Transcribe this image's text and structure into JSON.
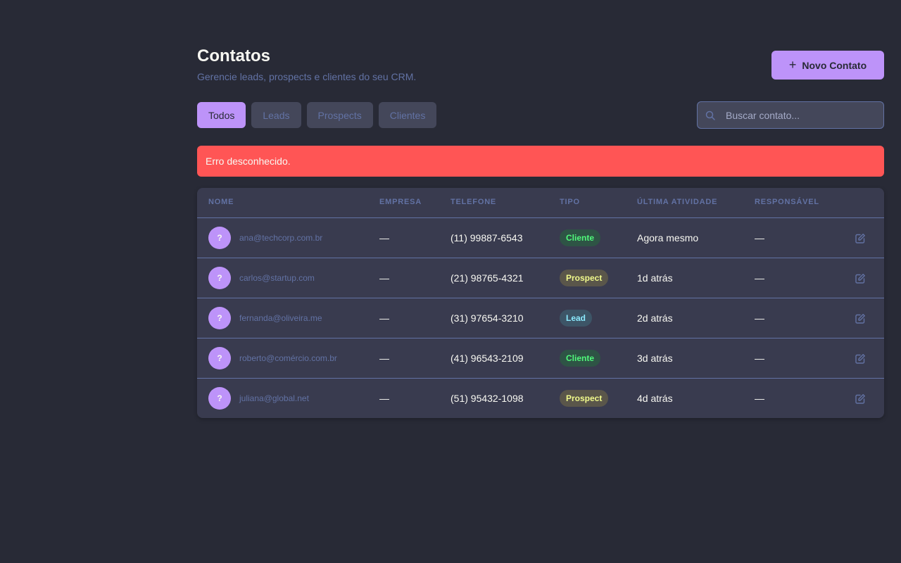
{
  "header": {
    "title": "Contatos",
    "subtitle": "Gerencie leads, prospects e clientes do seu CRM.",
    "new_button_label": "Novo Contato",
    "new_button_icon": "plus-icon"
  },
  "tabs": [
    {
      "label": "Todos",
      "active": true
    },
    {
      "label": "Leads",
      "active": false
    },
    {
      "label": "Prospects",
      "active": false
    },
    {
      "label": "Clientes",
      "active": false
    }
  ],
  "search": {
    "placeholder": "Buscar contato...",
    "value": "",
    "icon": "search-icon"
  },
  "error": {
    "message": "Erro desconhecido."
  },
  "table": {
    "columns": [
      "NOME",
      "EMPRESA",
      "TELEFONE",
      "TIPO",
      "ÚLTIMA ATIVIDADE",
      "RESPONSÁVEL"
    ],
    "rows": [
      {
        "avatar": "?",
        "email": "ana@techcorp.com.br",
        "empresa": "—",
        "telefone": "(11) 99887-6543",
        "tipo": "Cliente",
        "atividade": "Agora mesmo",
        "responsavel": "—"
      },
      {
        "avatar": "?",
        "email": "carlos@startup.com",
        "empresa": "—",
        "telefone": "(21) 98765-4321",
        "tipo": "Prospect",
        "atividade": "1d atrás",
        "responsavel": "—"
      },
      {
        "avatar": "?",
        "email": "fernanda@oliveira.me",
        "empresa": "—",
        "telefone": "(31) 97654-3210",
        "tipo": "Lead",
        "atividade": "2d atrás",
        "responsavel": "—"
      },
      {
        "avatar": "?",
        "email": "roberto@comércio.com.br",
        "empresa": "—",
        "telefone": "(41) 96543-2109",
        "tipo": "Cliente",
        "atividade": "3d atrás",
        "responsavel": "—"
      },
      {
        "avatar": "?",
        "email": "juliana@global.net",
        "empresa": "—",
        "telefone": "(51) 95432-1098",
        "tipo": "Prospect",
        "atividade": "4d atrás",
        "responsavel": "—"
      }
    ]
  },
  "colors": {
    "background": "#282a36",
    "accent": "#bd93f9",
    "error": "#ff5555",
    "muted": "#6272a4",
    "cliente": "#50fa7b",
    "prospect": "#f1fa8c",
    "lead": "#8be9fd"
  }
}
